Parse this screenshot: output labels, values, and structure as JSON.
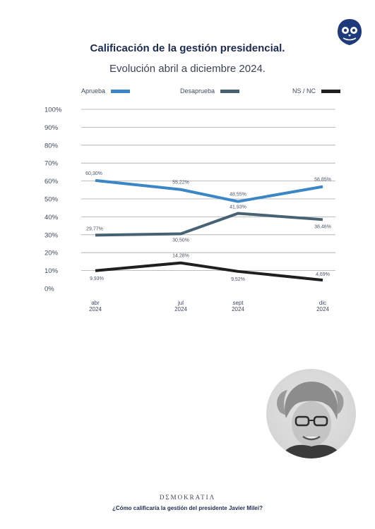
{
  "header": {
    "title": "Calificación de la gestión presidencial.",
    "subtitle": "Evolución abril a diciembre 2024."
  },
  "footer": {
    "brand": "DΣMOKRATIΛ",
    "question": "¿Cómo calificaría la gestión del presidente Javier Milei?"
  },
  "logo_icon": "owl-logo-icon",
  "photo_icon": "president-portrait",
  "chart_data": {
    "type": "line",
    "categories": [
      "abr\n2024",
      "jul\n2024",
      "sept\n2024",
      "dic\n2024"
    ],
    "category_lines": [
      [
        "abr",
        "2024"
      ],
      [
        "jul",
        "2024"
      ],
      [
        "sept",
        "2024"
      ],
      [
        "dic",
        "2024"
      ]
    ],
    "y_ticks": [
      "100%",
      "90%",
      "80%",
      "70%",
      "60%",
      "50%",
      "40%",
      "30%",
      "20%",
      "10%",
      "0%"
    ],
    "ylim": [
      0,
      100
    ],
    "grid": true,
    "legend_position": "top",
    "series": [
      {
        "name": "Aprueba",
        "color": "#3a86c6",
        "values": [
          60.3,
          55.22,
          48.55,
          56.85
        ],
        "labels": [
          "60,30%",
          "55,22%",
          "48,55%",
          "56,85%"
        ]
      },
      {
        "name": "Desaprueba",
        "color": "#476273",
        "values": [
          29.77,
          30.5,
          41.93,
          38.46
        ],
        "labels": [
          "29,77%",
          "30,50%",
          "41,93%",
          "38,46%"
        ]
      },
      {
        "name": "NS / NC",
        "color": "#1f1f1f",
        "values": [
          9.93,
          14.28,
          9.52,
          4.69
        ],
        "labels": [
          "9,93%",
          "14,28%",
          "9,52%",
          "4,69%"
        ]
      }
    ]
  }
}
